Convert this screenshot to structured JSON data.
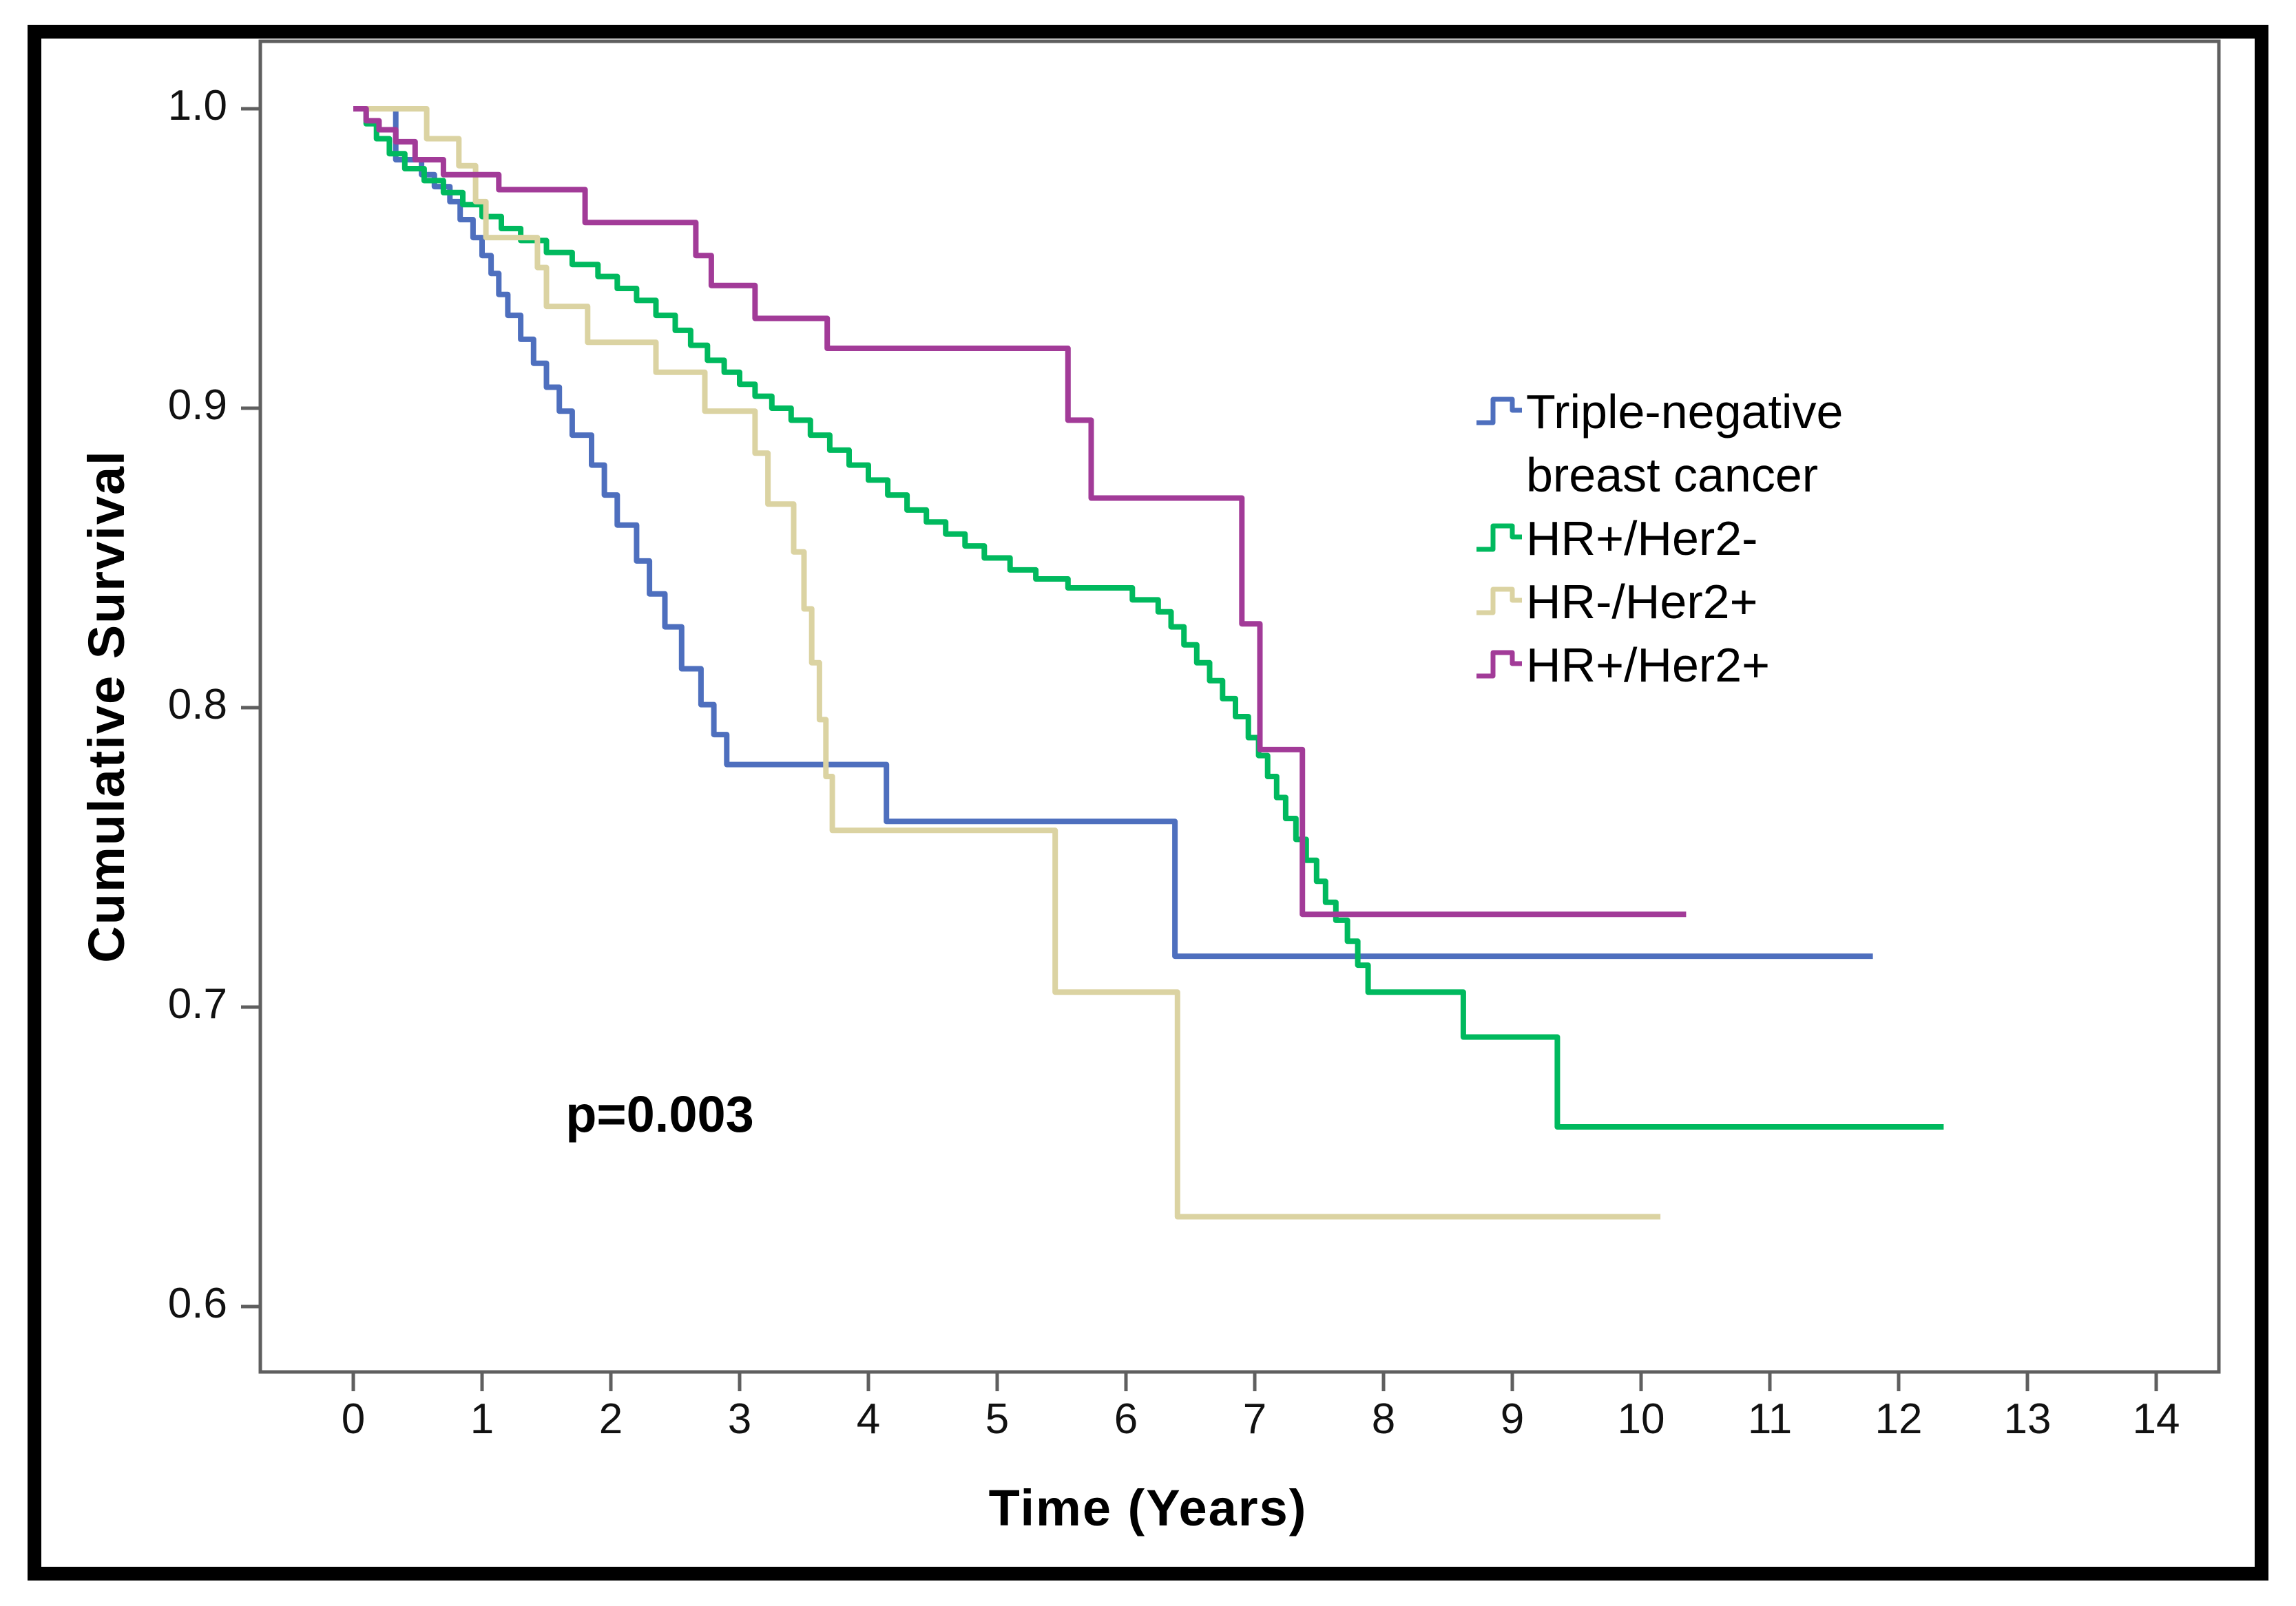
{
  "figure": {
    "type_note": "Kaplan-Meier cumulative survival plot",
    "p_annotation": "p=0.003"
  },
  "colors": {
    "background": "#ffffff",
    "figure_border": "#000000",
    "plot_box_border": "#5f5f5f",
    "tick_color": "#5f5f5f",
    "text_color": "#000000",
    "triple_negative": "#4e6fbe",
    "hrp_her2n": "#00b95e",
    "hrn_her2p": "#dbd3a2",
    "hrp_her2p": "#a23b98"
  },
  "chart_data": {
    "type": "line",
    "subtype": "kaplan-meier-step",
    "title": "",
    "xlabel": "Time (Years)",
    "ylabel": "Cumulative Survival",
    "xlim": [
      -0.72,
      14.48
    ],
    "ylim": [
      0.578,
      1.0225
    ],
    "grid": "off",
    "legend_position": "upper-right-inside",
    "x_ticks": {
      "values": [
        0,
        1,
        2,
        3,
        4,
        5,
        6,
        7,
        8,
        9,
        10,
        11,
        12,
        13,
        14
      ],
      "labels": [
        "0",
        "1",
        "2",
        "3",
        "4",
        "5",
        "6",
        "7",
        "8",
        "9",
        "10",
        "11",
        "12",
        "13",
        "14"
      ]
    },
    "y_ticks": {
      "values": [
        1.0,
        0.9,
        0.8,
        0.7,
        0.6
      ],
      "labels": [
        "1.0",
        "0.9",
        "0.8",
        "0.7",
        "0.6"
      ]
    },
    "annotation": {
      "text": "p=0.003",
      "x": 2.38,
      "y": 0.664
    },
    "series": [
      {
        "id": "triple_negative",
        "label": "Triple-negative breast cancer",
        "color": "#4e6fbe",
        "end": 11.8,
        "points": [
          [
            0,
            1.0
          ],
          [
            0.33,
            0.983
          ],
          [
            0.53,
            0.978
          ],
          [
            0.63,
            0.974
          ],
          [
            0.75,
            0.969
          ],
          [
            0.83,
            0.963
          ],
          [
            0.93,
            0.957
          ],
          [
            1.0,
            0.951
          ],
          [
            1.07,
            0.945
          ],
          [
            1.13,
            0.938
          ],
          [
            1.2,
            0.931
          ],
          [
            1.3,
            0.923
          ],
          [
            1.4,
            0.915
          ],
          [
            1.5,
            0.907
          ],
          [
            1.6,
            0.899
          ],
          [
            1.7,
            0.891
          ],
          [
            1.85,
            0.881
          ],
          [
            1.95,
            0.871
          ],
          [
            2.05,
            0.861
          ],
          [
            2.2,
            0.849
          ],
          [
            2.3,
            0.838
          ],
          [
            2.42,
            0.827
          ],
          [
            2.55,
            0.813
          ],
          [
            2.7,
            0.801
          ],
          [
            2.8,
            0.791
          ],
          [
            2.9,
            0.781
          ],
          [
            4.14,
            0.762
          ],
          [
            6.38,
            0.717
          ]
        ]
      },
      {
        "id": "hrp_her2n",
        "label": "HR+/Her2-",
        "color": "#00b95e",
        "end": 12.35,
        "points": [
          [
            0,
            1.0
          ],
          [
            0.1,
            0.995
          ],
          [
            0.18,
            0.99
          ],
          [
            0.28,
            0.985
          ],
          [
            0.4,
            0.98
          ],
          [
            0.55,
            0.976
          ],
          [
            0.7,
            0.972
          ],
          [
            0.85,
            0.968
          ],
          [
            1.0,
            0.964
          ],
          [
            1.15,
            0.96
          ],
          [
            1.3,
            0.956
          ],
          [
            1.5,
            0.952
          ],
          [
            1.7,
            0.948
          ],
          [
            1.9,
            0.944
          ],
          [
            2.05,
            0.94
          ],
          [
            2.2,
            0.936
          ],
          [
            2.35,
            0.931
          ],
          [
            2.5,
            0.926
          ],
          [
            2.62,
            0.921
          ],
          [
            2.75,
            0.916
          ],
          [
            2.88,
            0.912
          ],
          [
            3.0,
            0.908
          ],
          [
            3.12,
            0.904
          ],
          [
            3.25,
            0.9
          ],
          [
            3.4,
            0.896
          ],
          [
            3.55,
            0.891
          ],
          [
            3.7,
            0.886
          ],
          [
            3.85,
            0.881
          ],
          [
            4.0,
            0.876
          ],
          [
            4.15,
            0.871
          ],
          [
            4.3,
            0.866
          ],
          [
            4.45,
            0.862
          ],
          [
            4.6,
            0.858
          ],
          [
            4.75,
            0.854
          ],
          [
            4.9,
            0.85
          ],
          [
            5.1,
            0.846
          ],
          [
            5.3,
            0.843
          ],
          [
            5.55,
            0.84
          ],
          [
            6.05,
            0.836
          ],
          [
            6.25,
            0.832
          ],
          [
            6.35,
            0.827
          ],
          [
            6.45,
            0.821
          ],
          [
            6.55,
            0.815
          ],
          [
            6.65,
            0.809
          ],
          [
            6.75,
            0.803
          ],
          [
            6.85,
            0.797
          ],
          [
            6.95,
            0.79
          ],
          [
            7.03,
            0.784
          ],
          [
            7.1,
            0.777
          ],
          [
            7.17,
            0.77
          ],
          [
            7.24,
            0.763
          ],
          [
            7.32,
            0.756
          ],
          [
            7.4,
            0.749
          ],
          [
            7.48,
            0.742
          ],
          [
            7.55,
            0.735
          ],
          [
            7.63,
            0.729
          ],
          [
            7.72,
            0.722
          ],
          [
            7.8,
            0.714
          ],
          [
            7.88,
            0.705
          ],
          [
            8.62,
            0.69
          ],
          [
            9.35,
            0.66
          ]
        ]
      },
      {
        "id": "hrn_her2p",
        "label": "HR-/Her2+",
        "color": "#dbd3a2",
        "end": 10.15,
        "points": [
          [
            0,
            1.0
          ],
          [
            0.57,
            0.99
          ],
          [
            0.82,
            0.981
          ],
          [
            0.95,
            0.969
          ],
          [
            1.03,
            0.957
          ],
          [
            1.43,
            0.947
          ],
          [
            1.5,
            0.934
          ],
          [
            1.82,
            0.922
          ],
          [
            2.35,
            0.912
          ],
          [
            2.73,
            0.899
          ],
          [
            3.12,
            0.885
          ],
          [
            3.22,
            0.868
          ],
          [
            3.42,
            0.852
          ],
          [
            3.5,
            0.833
          ],
          [
            3.56,
            0.815
          ],
          [
            3.62,
            0.796
          ],
          [
            3.67,
            0.777
          ],
          [
            3.72,
            0.759
          ],
          [
            5.45,
            0.705
          ],
          [
            6.4,
            0.63
          ]
        ]
      },
      {
        "id": "hrp_her2p",
        "label": "HR+/Her2+",
        "color": "#a23b98",
        "end": 10.35,
        "points": [
          [
            0,
            1.0
          ],
          [
            0.1,
            0.996
          ],
          [
            0.2,
            0.993
          ],
          [
            0.33,
            0.989
          ],
          [
            0.48,
            0.983
          ],
          [
            0.7,
            0.978
          ],
          [
            1.13,
            0.973
          ],
          [
            1.8,
            0.962
          ],
          [
            2.66,
            0.951
          ],
          [
            2.78,
            0.941
          ],
          [
            3.12,
            0.93
          ],
          [
            3.68,
            0.92
          ],
          [
            5.55,
            0.896
          ],
          [
            5.73,
            0.87
          ],
          [
            6.9,
            0.828
          ],
          [
            7.04,
            0.786
          ],
          [
            7.37,
            0.731
          ]
        ]
      }
    ]
  }
}
